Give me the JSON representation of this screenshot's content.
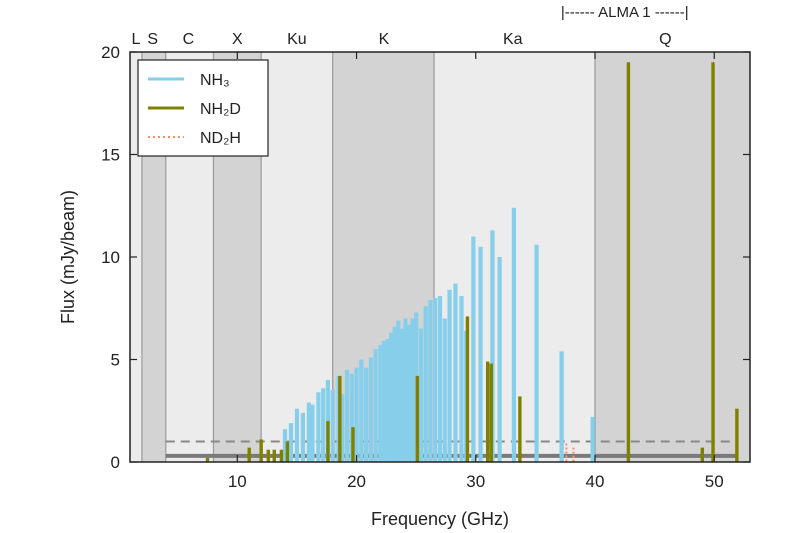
{
  "chart_data": {
    "type": "bar",
    "xlabel": "Frequency (GHz)",
    "ylabel": "Flux (mJy/beam)",
    "xlim": [
      1,
      53
    ],
    "ylim": [
      0,
      20
    ],
    "xticks": [
      10,
      20,
      30,
      40,
      50
    ],
    "yticks": [
      0,
      5,
      10,
      15,
      20
    ],
    "band_boundaries": [
      2,
      4,
      8,
      12,
      18,
      26.5,
      40,
      53
    ],
    "band_shades": [
      "#d3d3d3",
      "#ececec",
      "#d3d3d3",
      "#ececec",
      "#d3d3d3",
      "#ececec",
      "#d3d3d3"
    ],
    "band_labels": [
      {
        "label": "L",
        "x": 1.5
      },
      {
        "label": "S",
        "x": 2.9
      },
      {
        "label": "C",
        "x": 5.9
      },
      {
        "label": "X",
        "x": 10
      },
      {
        "label": "Ku",
        "x": 15
      },
      {
        "label": "K",
        "x": 22.3
      },
      {
        "label": "Ka",
        "x": 33.1
      },
      {
        "label": "Q",
        "x": 45.9
      }
    ],
    "alma_label": "|------ ALMA 1 ------|",
    "alma_range": [
      35,
      50
    ],
    "legend_position": "top-left",
    "dashed_line": {
      "y": 1.0,
      "x": [
        4,
        52
      ]
    },
    "solid_line": {
      "y": 0.3,
      "x": [
        4,
        52
      ]
    },
    "series": [
      {
        "name": "NH3",
        "color": "#87ceeb",
        "x": [
          14.0,
          14.5,
          15.0,
          15.5,
          16.0,
          16.3,
          16.8,
          17.2,
          17.6,
          18.0,
          18.5,
          18.8,
          19.2,
          19.6,
          20.0,
          20.4,
          20.8,
          21.2,
          21.6,
          22.0,
          22.3,
          22.6,
          22.9,
          23.2,
          23.5,
          23.8,
          24.1,
          24.4,
          24.7,
          25.0,
          25.4,
          25.8,
          26.2,
          26.6,
          27.0,
          27.4,
          27.8,
          28.3,
          28.8,
          29.2,
          29.8,
          30.4,
          31.4,
          32.0,
          33.2,
          35.1,
          37.2,
          39.8
        ],
        "values": [
          1.6,
          1.9,
          2.6,
          2.4,
          2.9,
          2.8,
          3.4,
          3.6,
          4.0,
          3.5,
          4.2,
          3.3,
          4.5,
          4.3,
          4.6,
          5.0,
          4.6,
          5.1,
          5.5,
          5.7,
          5.9,
          6.0,
          6.3,
          6.6,
          6.9,
          6.5,
          7.0,
          6.7,
          7.0,
          7.3,
          6.5,
          7.6,
          7.9,
          8.0,
          8.1,
          7.0,
          8.4,
          8.7,
          8.1,
          6.4,
          11.0,
          10.5,
          11.3,
          10.0,
          12.4,
          10.6,
          5.4,
          2.2
        ]
      },
      {
        "name": "NH2D",
        "color": "#808000",
        "x": [
          7.5,
          11.0,
          12.0,
          12.6,
          13.1,
          13.7,
          14.2,
          17.6,
          18.6,
          19.7,
          25.1,
          29.3,
          31.0,
          31.3,
          33.7,
          42.8,
          49.0,
          49.9,
          51.9
        ],
        "values": [
          0.2,
          0.7,
          1.1,
          0.6,
          0.6,
          0.6,
          1.0,
          2.0,
          4.2,
          1.7,
          4.2,
          7.1,
          4.9,
          4.8,
          3.2,
          19.5,
          0.7,
          19.5,
          2.6
        ]
      },
      {
        "name": "ND2H",
        "color": "#ff8c69",
        "x": [
          37.6,
          38.2
        ],
        "values": [
          0.9,
          0.7
        ]
      }
    ]
  },
  "legend": [
    {
      "label": "NH₃",
      "color": "#87ceeb",
      "style": "solid"
    },
    {
      "label": "NH₂D",
      "color": "#808000",
      "style": "solid"
    },
    {
      "label": "ND₂H",
      "color": "#ff8c69",
      "style": "dotted"
    }
  ]
}
